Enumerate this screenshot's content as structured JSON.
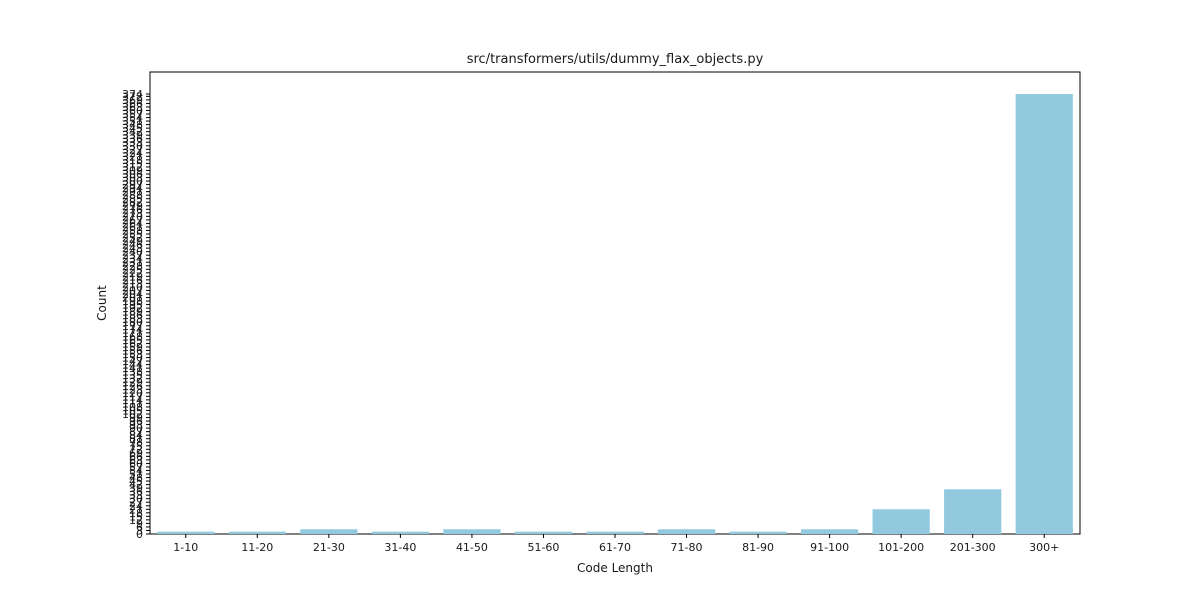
{
  "chart_data": {
    "type": "bar",
    "title": "src/transformers/utils/dummy_flax_objects.py",
    "xlabel": "Code Length",
    "ylabel": "Count",
    "categories": [
      "1-10",
      "11-20",
      "21-30",
      "31-40",
      "41-50",
      "51-60",
      "61-70",
      "71-80",
      "81-90",
      "91-100",
      "101-200",
      "201-300",
      "300+"
    ],
    "values": [
      2,
      2,
      4,
      2,
      4,
      2,
      2,
      4,
      2,
      4,
      21,
      38,
      374
    ],
    "ylim": [
      0,
      374
    ],
    "ytick_step": 3,
    "ytick_max": 374,
    "bar_color": "#92c9df",
    "grid": false
  }
}
